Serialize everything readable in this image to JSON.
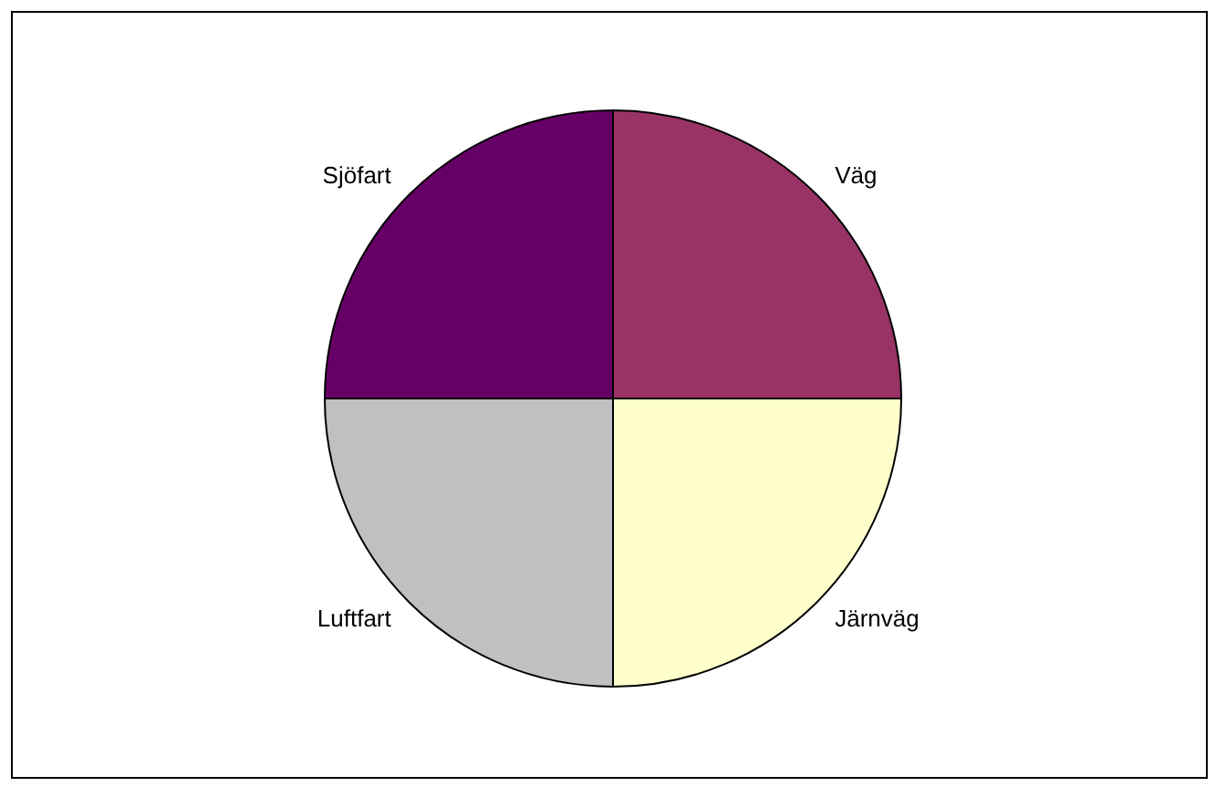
{
  "chart_data": {
    "type": "pie",
    "categories": [
      "Väg",
      "Järnväg",
      "Luftfart",
      "Sjöfart"
    ],
    "values": [
      25,
      25,
      25,
      25
    ],
    "colors": [
      "#993366",
      "#ffffcc",
      "#c0c0c0",
      "#660066"
    ],
    "legend": false
  }
}
